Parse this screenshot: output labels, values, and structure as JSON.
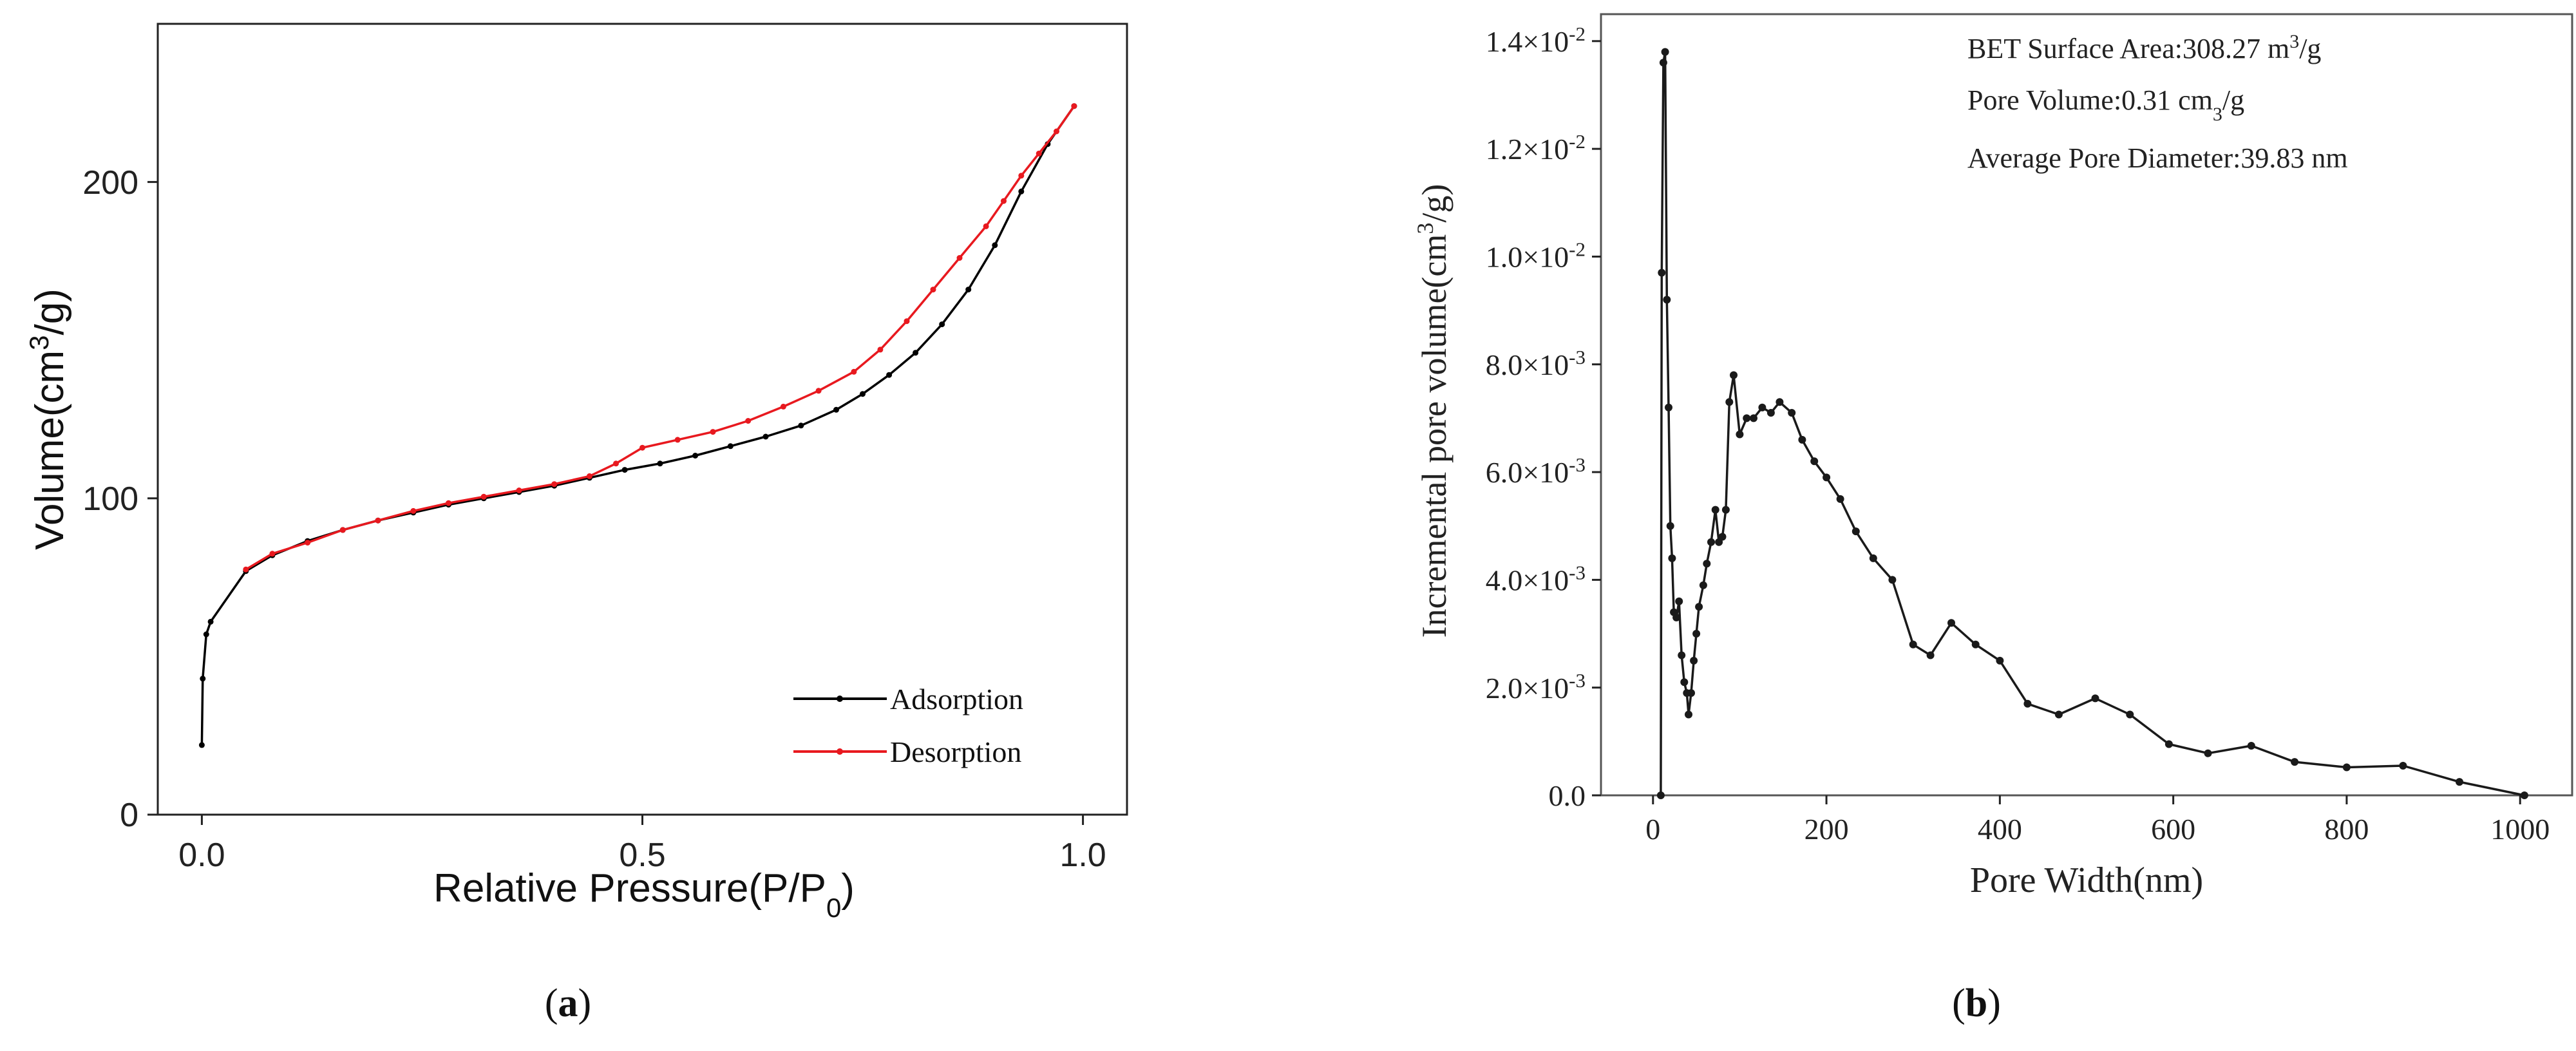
{
  "panels": [
    {
      "label": "(a)",
      "label_letter": "a",
      "chart_data": {
        "type": "line",
        "title": "",
        "xlabel": "Relative Pressure(P/P",
        "xlabel_sub": "0",
        "xlabel_end": ")",
        "ylabel": "Volume(cm",
        "ylabel_sup": "3",
        "ylabel_end": "/g)",
        "xlim": [
          -0.05,
          1.05
        ],
        "ylim": [
          0,
          250
        ],
        "xticks": [
          0.0,
          0.5,
          1.0
        ],
        "xtick_labels": [
          "0.0",
          "0.5",
          "1.0"
        ],
        "yticks": [
          0,
          100,
          200
        ],
        "ytick_labels": [
          "0",
          "100",
          "200"
        ],
        "grid": false,
        "legend_position": "bottom-right",
        "series": [
          {
            "name": "Adsorption",
            "color": "#000000",
            "points": [
              [
                0.0,
                22
              ],
              [
                0.001,
                43
              ],
              [
                0.005,
                57
              ],
              [
                0.01,
                61
              ],
              [
                0.05,
                77
              ],
              [
                0.08,
                82
              ],
              [
                0.12,
                86.5
              ],
              [
                0.16,
                90
              ],
              [
                0.2,
                93
              ],
              [
                0.24,
                95.5
              ],
              [
                0.28,
                98
              ],
              [
                0.32,
                100
              ],
              [
                0.36,
                102
              ],
              [
                0.4,
                104
              ],
              [
                0.44,
                106.5
              ],
              [
                0.48,
                109
              ],
              [
                0.52,
                111
              ],
              [
                0.56,
                113.5
              ],
              [
                0.6,
                116.5
              ],
              [
                0.64,
                119.5
              ],
              [
                0.68,
                123
              ],
              [
                0.72,
                128
              ],
              [
                0.75,
                133
              ],
              [
                0.78,
                139
              ],
              [
                0.81,
                146
              ],
              [
                0.84,
                155
              ],
              [
                0.87,
                166
              ],
              [
                0.9,
                180
              ],
              [
                0.93,
                197
              ],
              [
                0.96,
                212
              ],
              [
                0.99,
                224
              ]
            ]
          },
          {
            "name": "Desorption",
            "color": "#e8191f",
            "points": [
              [
                0.99,
                224
              ],
              [
                0.97,
                216
              ],
              [
                0.95,
                209
              ],
              [
                0.93,
                202
              ],
              [
                0.91,
                194
              ],
              [
                0.89,
                186
              ],
              [
                0.86,
                176
              ],
              [
                0.83,
                166
              ],
              [
                0.8,
                156
              ],
              [
                0.77,
                147
              ],
              [
                0.74,
                140
              ],
              [
                0.7,
                134
              ],
              [
                0.66,
                129
              ],
              [
                0.62,
                124.5
              ],
              [
                0.58,
                121
              ],
              [
                0.54,
                118.5
              ],
              [
                0.5,
                116
              ],
              [
                0.47,
                111
              ],
              [
                0.44,
                107
              ],
              [
                0.4,
                104.5
              ],
              [
                0.36,
                102.5
              ],
              [
                0.32,
                100.5
              ],
              [
                0.28,
                98.5
              ],
              [
                0.24,
                96
              ],
              [
                0.2,
                93
              ],
              [
                0.16,
                90
              ],
              [
                0.12,
                86
              ],
              [
                0.08,
                82.5
              ],
              [
                0.05,
                77.5
              ]
            ]
          }
        ]
      }
    },
    {
      "label": "(b)",
      "label_letter": "b",
      "chart_data": {
        "type": "line",
        "title": "",
        "xlabel": "Pore Width(nm)",
        "ylabel": "Incremental pore volume(cm",
        "ylabel_sup": "3",
        "ylabel_end": "/g)",
        "xlim": [
          -60,
          1060
        ],
        "ylim": [
          0,
          0.0145
        ],
        "xticks": [
          0,
          200,
          400,
          600,
          800,
          1000
        ],
        "xtick_labels": [
          "0",
          "200",
          "400",
          "600",
          "800",
          "1000"
        ],
        "yticks": [
          0.0,
          0.002,
          0.004,
          0.006,
          0.008,
          0.01,
          0.012,
          0.014
        ],
        "ytick_labels": [
          {
            "base": "0.0",
            "exp": ""
          },
          {
            "base": "2.0×10",
            "exp": "-3"
          },
          {
            "base": "4.0×10",
            "exp": "-3"
          },
          {
            "base": "6.0×10",
            "exp": "-3"
          },
          {
            "base": "8.0×10",
            "exp": "-3"
          },
          {
            "base": "1.0×10",
            "exp": "-2"
          },
          {
            "base": "1.2×10",
            "exp": "-2"
          },
          {
            "base": "1.4×10",
            "exp": "-2"
          }
        ],
        "grid": false,
        "annotations": [
          {
            "text": "BET Surface Area:308.27 m",
            "sup": "3",
            "end": "/g"
          },
          {
            "text": "Pore Volume:0.31 cm",
            "sub": "3",
            "end": "/g"
          },
          {
            "text": "Average Pore Diameter:39.83 nm"
          }
        ],
        "series": [
          {
            "name": "Incremental pore volume",
            "color": "#1a1a1a",
            "points": [
              [
                9,
                0.0
              ],
              [
                10,
                0.0097
              ],
              [
                12,
                0.0136
              ],
              [
                14,
                0.0138
              ],
              [
                16,
                0.0092
              ],
              [
                18,
                0.0072
              ],
              [
                20,
                0.005
              ],
              [
                22,
                0.0044
              ],
              [
                24,
                0.0034
              ],
              [
                27,
                0.0033
              ],
              [
                30,
                0.0036
              ],
              [
                33,
                0.0026
              ],
              [
                36,
                0.0021
              ],
              [
                39,
                0.0019
              ],
              [
                41,
                0.0015
              ],
              [
                44,
                0.0019
              ],
              [
                47,
                0.0025
              ],
              [
                50,
                0.003
              ],
              [
                53,
                0.0035
              ],
              [
                58,
                0.0039
              ],
              [
                62,
                0.0043
              ],
              [
                67,
                0.0047
              ],
              [
                72,
                0.0053
              ],
              [
                76,
                0.0047
              ],
              [
                80,
                0.0048
              ],
              [
                84,
                0.0053
              ],
              [
                88,
                0.0073
              ],
              [
                93,
                0.0078
              ],
              [
                100,
                0.0067
              ],
              [
                108,
                0.007
              ],
              [
                116,
                0.007
              ],
              [
                126,
                0.0072
              ],
              [
                136,
                0.0071
              ],
              [
                146,
                0.0073
              ],
              [
                160,
                0.0071
              ],
              [
                172,
                0.0066
              ],
              [
                186,
                0.0062
              ],
              [
                200,
                0.0059
              ],
              [
                216,
                0.0055
              ],
              [
                234,
                0.0049
              ],
              [
                254,
                0.0044
              ],
              [
                276,
                0.004
              ],
              [
                300,
                0.0028
              ],
              [
                320,
                0.0026
              ],
              [
                344,
                0.0032
              ],
              [
                372,
                0.0028
              ],
              [
                400,
                0.0025
              ],
              [
                432,
                0.0017
              ],
              [
                468,
                0.0015
              ],
              [
                510,
                0.0018
              ],
              [
                550,
                0.0015
              ],
              [
                595,
                0.00095
              ],
              [
                640,
                0.00078
              ],
              [
                690,
                0.00092
              ],
              [
                740,
                0.00062
              ],
              [
                800,
                0.00052
              ],
              [
                865,
                0.00055
              ],
              [
                930,
                0.00025
              ],
              [
                1005,
                0.0
              ]
            ]
          }
        ]
      }
    }
  ]
}
